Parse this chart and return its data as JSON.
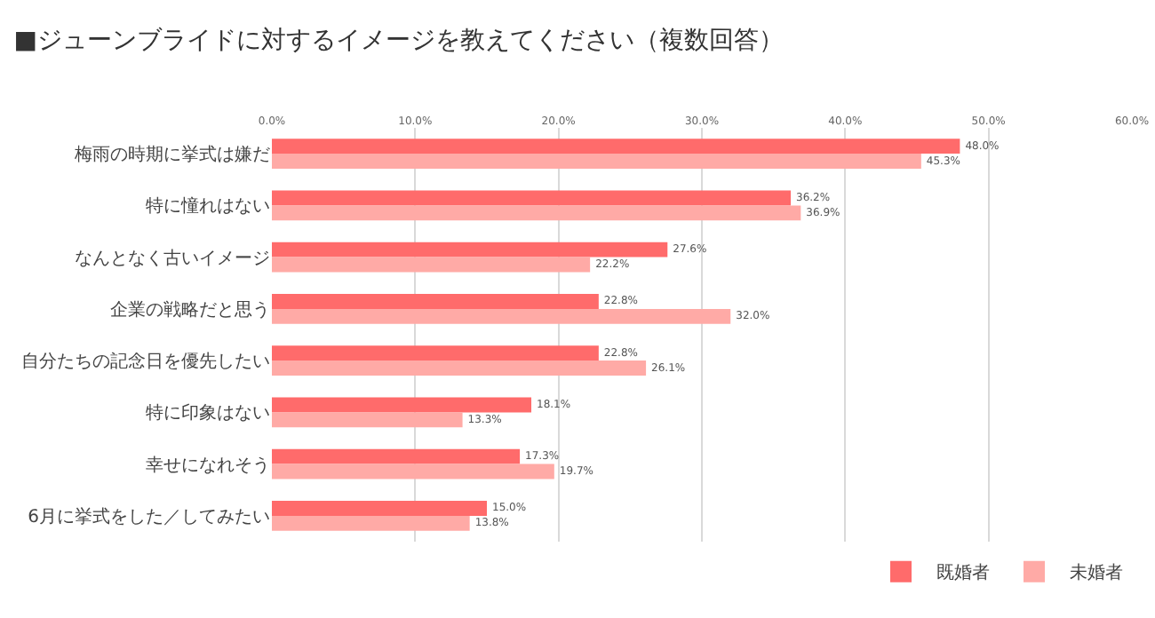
{
  "chart_data": {
    "type": "bar",
    "orientation": "horizontal",
    "title": "■ジューンブライドに対するイメージを教えてください（複数回答）",
    "categories": [
      "梅雨の時期に挙式は嫌だ",
      "特に憧れはない",
      "なんとなく古いイメージ",
      "企業の戦略だと思う",
      "自分たちの記念日を優先したい",
      "特に印象はない",
      "幸せになれそう",
      "6月に挙式をした／してみたい"
    ],
    "series": [
      {
        "name": "既婚者",
        "color": "#ff6b6b",
        "values": [
          48.0,
          36.2,
          27.6,
          22.8,
          22.8,
          18.1,
          17.3,
          15.0
        ],
        "value_labels": [
          "48.0%",
          "36.2%",
          "27.6%",
          "22.8%",
          "22.8%",
          "18.1%",
          "17.3%",
          "15.0%"
        ]
      },
      {
        "name": "未婚者",
        "color": "#ffaaa6",
        "values": [
          45.3,
          36.9,
          22.2,
          32.0,
          26.1,
          13.3,
          19.7,
          13.8
        ],
        "value_labels": [
          "45.3%",
          "36.9%",
          "22.2%",
          "32.0%",
          "26.1%",
          "13.3%",
          "19.7%",
          "13.8%"
        ]
      }
    ],
    "xlim": [
      0,
      60
    ],
    "xticks": [
      {
        "value": 0,
        "label": "0.0%"
      },
      {
        "value": 10,
        "label": "10.0%"
      },
      {
        "value": 20,
        "label": "20.0%"
      },
      {
        "value": 30,
        "label": "30.0%"
      },
      {
        "value": 40,
        "label": "40.0%"
      },
      {
        "value": 50,
        "label": "50.0%"
      },
      {
        "value": 60,
        "label": "60.0%"
      }
    ],
    "grid": "x",
    "legend": "bottom right"
  }
}
